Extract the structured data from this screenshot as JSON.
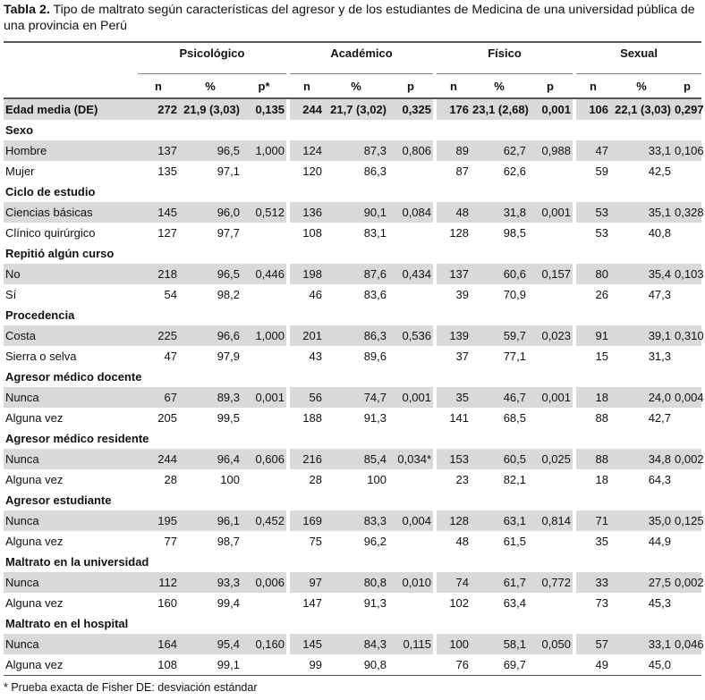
{
  "caption": {
    "label": "Tabla 2.",
    "text": " Tipo de maltrato según características del agresor y de los estudiantes de Medicina de una universidad pública de una provincia en Perú"
  },
  "groups": [
    "Psicológico",
    "Académico",
    "Físico",
    "Sexual"
  ],
  "subheads": [
    [
      "n",
      "%",
      "p*"
    ],
    [
      "n",
      "%",
      "p"
    ],
    [
      "n",
      "%",
      "p"
    ],
    [
      "n",
      "%",
      "p"
    ]
  ],
  "rows": [
    {
      "type": "edad",
      "label": "Edad media (DE)",
      "cells": [
        "272",
        "21,9 (3,03)",
        "0,135",
        "244",
        "21,7 (3,02)",
        "0,325",
        "176",
        "23,1 (2,68)",
        "0,001",
        "106",
        "22,1 (3,03)",
        "0,297"
      ]
    },
    {
      "type": "sec",
      "label": "Sexo"
    },
    {
      "type": "data",
      "shade": true,
      "label": "Hombre",
      "cells": [
        "137",
        "96,5",
        "1,000",
        "124",
        "87,3",
        "0,806",
        "89",
        "62,7",
        "0,988",
        "47",
        "33,1",
        "0,106"
      ]
    },
    {
      "type": "data",
      "shade": false,
      "label": "Mujer",
      "cells": [
        "135",
        "97,1",
        "",
        "120",
        "86,3",
        "",
        "87",
        "62,6",
        "",
        "59",
        "42,5",
        ""
      ]
    },
    {
      "type": "sec",
      "label": "Ciclo de estudio"
    },
    {
      "type": "data",
      "shade": true,
      "label": "Ciencias básicas",
      "cells": [
        "145",
        "96,0",
        "0,512",
        "136",
        "90,1",
        "0,084",
        "48",
        "31,8",
        "0,001",
        "53",
        "35,1",
        "0,328"
      ]
    },
    {
      "type": "data",
      "shade": false,
      "label": "Clínico quirúrgico",
      "cells": [
        "127",
        "97,7",
        "",
        "108",
        "83,1",
        "",
        "128",
        "98,5",
        "",
        "53",
        "40,8",
        ""
      ]
    },
    {
      "type": "sec",
      "label": "Repitió algún curso"
    },
    {
      "type": "data",
      "shade": true,
      "label": "No",
      "cells": [
        "218",
        "96,5",
        "0,446",
        "198",
        "87,6",
        "0,434",
        "137",
        "60,6",
        "0,157",
        "80",
        "35,4",
        "0,103"
      ]
    },
    {
      "type": "data",
      "shade": false,
      "label": "Sí",
      "cells": [
        "54",
        "98,2",
        "",
        "46",
        "83,6",
        "",
        "39",
        "70,9",
        "",
        "26",
        "47,3",
        ""
      ]
    },
    {
      "type": "sec",
      "label": "Procedencia"
    },
    {
      "type": "data",
      "shade": true,
      "label": "Costa",
      "cells": [
        "225",
        "96,6",
        "1,000",
        "201",
        "86,3",
        "0,536",
        "139",
        "59,7",
        "0,023",
        "91",
        "39,1",
        "0,310"
      ]
    },
    {
      "type": "data",
      "shade": false,
      "label": "Sierra o selva",
      "cells": [
        "47",
        "97,9",
        "",
        "43",
        "89,6",
        "",
        "37",
        "77,1",
        "",
        "15",
        "31,3",
        ""
      ]
    },
    {
      "type": "sec",
      "label": "Agresor médico docente"
    },
    {
      "type": "data",
      "shade": true,
      "label": "Nunca",
      "cells": [
        "67",
        "89,3",
        "0,001",
        "56",
        "74,7",
        "0,001",
        "35",
        "46,7",
        "0,001",
        "18",
        "24,0",
        "0,004"
      ]
    },
    {
      "type": "data",
      "shade": false,
      "label": "Alguna vez",
      "cells": [
        "205",
        "99,5",
        "",
        "188",
        "91,3",
        "",
        "141",
        "68,5",
        "",
        "88",
        "42,7",
        ""
      ]
    },
    {
      "type": "sec",
      "label": "Agresor médico residente"
    },
    {
      "type": "data",
      "shade": true,
      "label": "Nunca",
      "cells": [
        "244",
        "96,4",
        "0,606",
        "216",
        "85,4",
        "0,034*",
        "153",
        "60,5",
        "0,025",
        "88",
        "34,8",
        "0,002"
      ]
    },
    {
      "type": "data",
      "shade": false,
      "label": "Alguna vez",
      "cells": [
        "28",
        "100",
        "",
        "28",
        "100",
        "",
        "23",
        "82,1",
        "",
        "18",
        "64,3",
        ""
      ]
    },
    {
      "type": "sec",
      "label": "Agresor estudiante"
    },
    {
      "type": "data",
      "shade": true,
      "label": "Nunca",
      "cells": [
        "195",
        "96,1",
        "0,452",
        "169",
        "83,3",
        "0,004",
        "128",
        "63,1",
        "0,814",
        "71",
        "35,0",
        "0,125"
      ]
    },
    {
      "type": "data",
      "shade": false,
      "label": "Alguna vez",
      "cells": [
        "77",
        "98,7",
        "",
        "75",
        "96,2",
        "",
        "48",
        "61,5",
        "",
        "35",
        "44,9",
        ""
      ]
    },
    {
      "type": "sec",
      "label": "Maltrato en la universidad"
    },
    {
      "type": "data",
      "shade": true,
      "label": "Nunca",
      "cells": [
        "112",
        "93,3",
        "0,006",
        "97",
        "80,8",
        "0,010",
        "74",
        "61,7",
        "0,772",
        "33",
        "27,5",
        "0,002"
      ]
    },
    {
      "type": "data",
      "shade": false,
      "label": "Alguna vez",
      "cells": [
        "160",
        "99,4",
        "",
        "147",
        "91,3",
        "",
        "102",
        "63,4",
        "",
        "73",
        "45,3",
        ""
      ]
    },
    {
      "type": "sec",
      "label": "Maltrato en el hospital"
    },
    {
      "type": "data",
      "shade": true,
      "label": "Nunca",
      "cells": [
        "164",
        "95,4",
        "0,160",
        "145",
        "84,3",
        "0,115",
        "100",
        "58,1",
        "0,050",
        "57",
        "33,1",
        "0,046"
      ]
    },
    {
      "type": "data",
      "shade": false,
      "label": "Alguna vez",
      "cells": [
        "108",
        "99,1",
        "",
        "99",
        "90,8",
        "",
        "76",
        "69,7",
        "",
        "49",
        "45,0",
        ""
      ]
    }
  ],
  "footnote": "* Prueba exacta de Fisher DE: desviación estándar",
  "colors": {
    "shade": "#d9d9d9",
    "rule": "#555555"
  }
}
